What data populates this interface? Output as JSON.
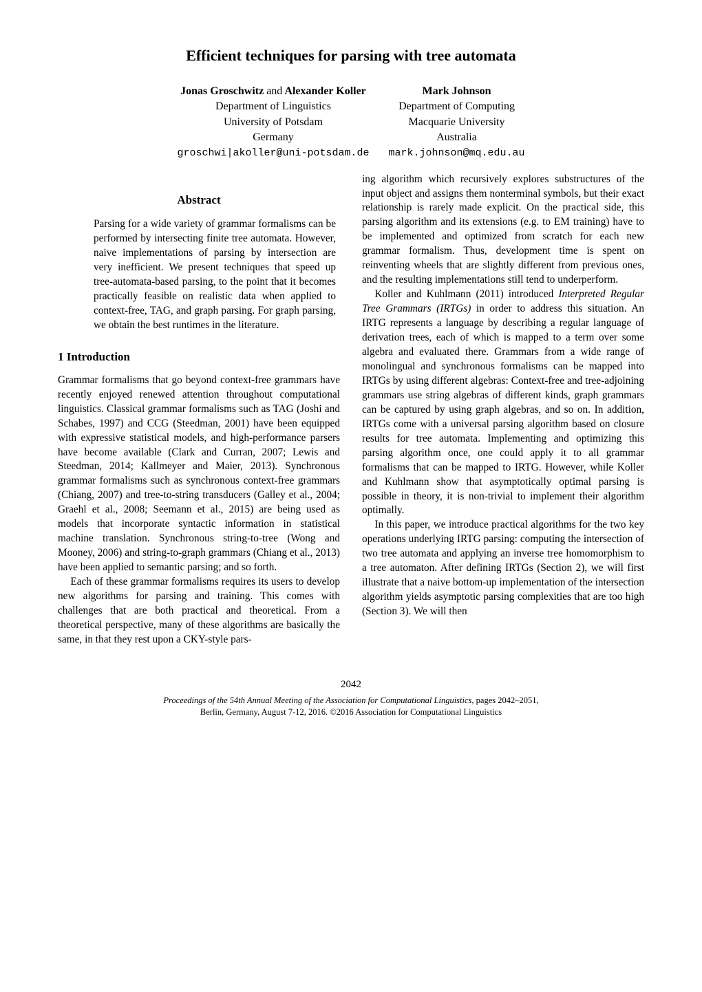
{
  "title": "Efficient techniques for parsing with tree automata",
  "authors": {
    "left": {
      "names_html": "Jonas Groschwitz <span style=\"font-weight:normal\">and</span> Alexander Koller",
      "names_plain": "Jonas Groschwitz and Alexander Koller",
      "dept": "Department of Linguistics",
      "univ": "University of Potsdam",
      "country": "Germany",
      "email": "groschwi|akoller@uni-potsdam.de"
    },
    "right": {
      "names": "Mark Johnson",
      "dept": "Department of Computing",
      "univ": "Macquarie University",
      "country": "Australia",
      "email": "mark.johnson@mq.edu.au"
    }
  },
  "abstract": {
    "heading": "Abstract",
    "body": "Parsing for a wide variety of grammar formalisms can be performed by intersecting finite tree automata. However, naive implementations of parsing by intersection are very inefficient. We present techniques that speed up tree-automata-based parsing, to the point that it becomes practically feasible on realistic data when applied to context-free, TAG, and graph parsing. For graph parsing, we obtain the best runtimes in the literature."
  },
  "section1": {
    "heading": "1   Introduction",
    "left_paras": [
      "Grammar formalisms that go beyond context-free grammars have recently enjoyed renewed attention throughout computational linguistics. Classical grammar formalisms such as TAG (Joshi and Schabes, 1997) and CCG (Steedman, 2001) have been equipped with expressive statistical models, and high-performance parsers have become available (Clark and Curran, 2007; Lewis and Steedman, 2014; Kallmeyer and Maier, 2013). Synchronous grammar formalisms such as synchronous context-free grammars (Chiang, 2007) and tree-to-string transducers (Galley et al., 2004; Graehl et al., 2008; Seemann et al., 2015) are being used as models that incorporate syntactic information in statistical machine translation. Synchronous string-to-tree (Wong and Mooney, 2006) and string-to-graph grammars (Chiang et al., 2013) have been applied to semantic parsing; and so forth.",
      "Each of these grammar formalisms requires its users to develop new algorithms for parsing and training. This comes with challenges that are both practical and theoretical. From a theoretical perspective, many of these algorithms are basically the same, in that they rest upon a CKY-style pars-"
    ],
    "right_paras_html": [
      "ing algorithm which recursively explores substructures of the input object and assigns them nonterminal symbols, but their exact relationship is rarely made explicit. On the practical side, this parsing algorithm and its extensions (e.g. to EM training) have to be implemented and optimized from scratch for each new grammar formalism. Thus, development time is spent on reinventing wheels that are slightly different from previous ones, and the resulting implementations still tend to underperform.",
      "Koller and Kuhlmann (2011) introduced <span class=\"italic\">Interpreted Regular Tree Grammars (IRTGs)</span> in order to address this situation. An IRTG represents a language by describing a regular language of derivation trees, each of which is mapped to a term over some algebra and evaluated there. Grammars from a wide range of monolingual and synchronous formalisms can be mapped into IRTGs by using different algebras: Context-free and tree-adjoining grammars use string algebras of different kinds, graph grammars can be captured by using graph algebras, and so on. In addition, IRTGs come with a universal parsing algorithm based on closure results for tree automata. Implementing and optimizing this parsing algorithm once, one could apply it to all grammar formalisms that can be mapped to IRTG. However, while Koller and Kuhlmann show that asymptotically optimal parsing is possible in theory, it is non-trivial to implement their algorithm optimally.",
      "In this paper, we introduce practical algorithms for the two key operations underlying IRTG parsing: computing the intersection of two tree automata and applying an inverse tree homomorphism to a tree automaton. After defining IRTGs (Section 2), we will first illustrate that a naive bottom-up implementation of the intersection algorithm yields asymptotic parsing complexities that are too high (Section 3).  We will then"
    ]
  },
  "footer": {
    "page": "2042",
    "proceedings_ital": "Proceedings of the 54th Annual Meeting of the Association for Computational Linguistics",
    "proceedings_tail": ", pages 2042–2051,",
    "venue": "Berlin, Germany, August 7-12, 2016. ©2016 Association for Computational Linguistics"
  }
}
